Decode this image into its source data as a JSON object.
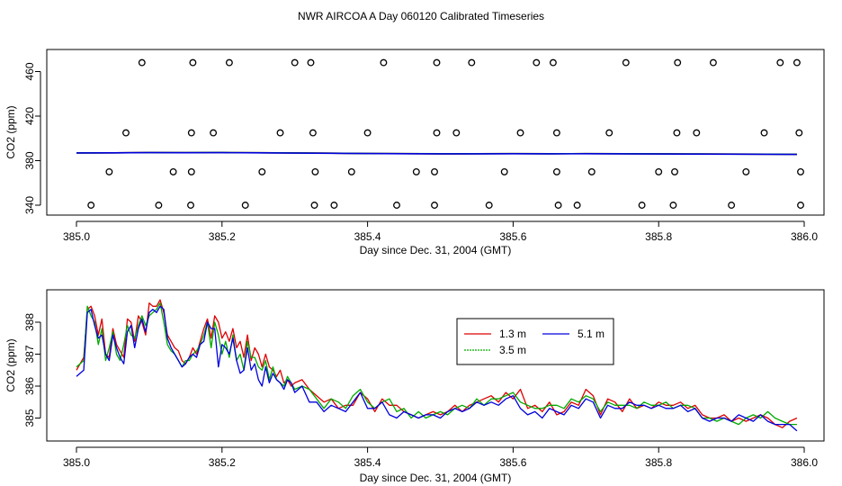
{
  "page_title": "NWR AIRCOA A  Day 060120  Calibrated Timeseries",
  "chart_data": [
    {
      "type": "scatter",
      "xlabel": "Day since Dec. 31, 2004 (GMT)",
      "ylabel": "CO2 (ppm)",
      "xlim": [
        385.0,
        386.0
      ],
      "ylim": [
        330,
        470
      ],
      "xticks": [
        385.0,
        385.2,
        385.4,
        385.6,
        385.8,
        386.0
      ],
      "xtick_labels": [
        "385.0",
        "385.2",
        "385.4",
        "385.6",
        "385.8",
        "386.0"
      ],
      "yticks": [
        340,
        380,
        420,
        460
      ],
      "ytick_labels": [
        "340",
        "380",
        "420",
        "460"
      ],
      "calibration_points": {
        "y340": [
          385.02,
          385.113,
          385.157,
          385.232,
          385.327,
          385.354,
          385.44,
          385.492,
          385.567,
          385.662,
          385.688,
          385.777,
          385.82,
          385.9,
          385.995
        ],
        "y370": [
          385.045,
          385.133,
          385.158,
          385.255,
          385.328,
          385.378,
          385.467,
          385.492,
          385.588,
          385.66,
          385.708,
          385.8,
          385.822,
          385.92,
          385.995
        ],
        "y405": [
          385.068,
          385.158,
          385.188,
          385.28,
          385.325,
          385.4,
          385.495,
          385.522,
          385.61,
          385.66,
          385.732,
          385.825,
          385.852,
          385.945,
          385.993
        ],
        "y468": [
          385.09,
          385.16,
          385.21,
          385.3,
          385.322,
          385.422,
          385.495,
          385.543,
          385.632,
          385.655,
          385.755,
          385.826,
          385.875,
          385.967,
          385.99
        ]
      },
      "series": [
        {
          "name": "1.3 m",
          "color": "#dd0000",
          "x": [
            385.0,
            385.05,
            385.1,
            385.15,
            385.2,
            385.25,
            385.3,
            385.35,
            385.4,
            385.45,
            385.5,
            385.55,
            385.6,
            385.65,
            385.7,
            385.75,
            385.8,
            385.85,
            385.9,
            385.95,
            385.99
          ],
          "values": [
            386.9,
            387.0,
            387.3,
            387.2,
            387.3,
            387.1,
            386.9,
            386.7,
            386.4,
            386.3,
            386.1,
            386.2,
            386.3,
            386.2,
            386.3,
            386.2,
            386.1,
            386.0,
            385.9,
            385.8,
            385.7
          ]
        },
        {
          "name": "3.5 m",
          "color": "#00aa00",
          "x": [
            385.0,
            385.05,
            385.1,
            385.15,
            385.2,
            385.25,
            385.3,
            385.35,
            385.4,
            385.45,
            385.5,
            385.55,
            385.6,
            385.65,
            385.7,
            385.75,
            385.8,
            385.85,
            385.9,
            385.95,
            385.99
          ],
          "values": [
            386.9,
            387.0,
            387.2,
            387.2,
            387.3,
            387.1,
            386.9,
            386.7,
            386.4,
            386.3,
            386.2,
            386.2,
            386.3,
            386.2,
            386.3,
            386.2,
            386.1,
            386.0,
            385.9,
            385.8,
            385.7
          ]
        },
        {
          "name": "5.1 m",
          "color": "#0000dd",
          "x": [
            385.0,
            385.05,
            385.1,
            385.15,
            385.2,
            385.25,
            385.3,
            385.35,
            385.4,
            385.45,
            385.5,
            385.55,
            385.6,
            385.65,
            385.7,
            385.75,
            385.8,
            385.85,
            385.9,
            385.95,
            385.99
          ],
          "values": [
            386.9,
            387.0,
            387.2,
            387.1,
            387.2,
            387.0,
            386.8,
            386.6,
            386.4,
            386.2,
            386.1,
            386.1,
            386.2,
            386.1,
            386.2,
            386.1,
            386.0,
            385.9,
            385.8,
            385.7,
            385.6
          ]
        }
      ]
    },
    {
      "type": "line",
      "xlabel": "Day since Dec. 31, 2004 (GMT)",
      "ylabel": "CO2 (ppm)",
      "xlim": [
        385.0,
        386.0
      ],
      "ylim": [
        384.5,
        388.8
      ],
      "xticks": [
        385.0,
        385.2,
        385.4,
        385.6,
        385.8,
        386.0
      ],
      "xtick_labels": [
        "385.0",
        "385.2",
        "385.4",
        "385.6",
        "385.8",
        "386.0"
      ],
      "yticks": [
        385,
        386,
        387,
        388
      ],
      "ytick_labels": [
        "385",
        "386",
        "387",
        "388"
      ],
      "legend_position": "top-right-center",
      "x": [
        385.0,
        385.01,
        385.015,
        385.02,
        385.025,
        385.03,
        385.035,
        385.04,
        385.045,
        385.05,
        385.055,
        385.06,
        385.065,
        385.07,
        385.075,
        385.08,
        385.085,
        385.09,
        385.095,
        385.1,
        385.105,
        385.11,
        385.115,
        385.12,
        385.125,
        385.13,
        385.135,
        385.14,
        385.145,
        385.15,
        385.155,
        385.16,
        385.165,
        385.17,
        385.175,
        385.18,
        385.185,
        385.19,
        385.195,
        385.2,
        385.205,
        385.21,
        385.215,
        385.22,
        385.225,
        385.23,
        385.235,
        385.24,
        385.245,
        385.25,
        385.255,
        385.26,
        385.265,
        385.27,
        385.275,
        385.28,
        385.285,
        385.29,
        385.295,
        385.3,
        385.31,
        385.32,
        385.33,
        385.34,
        385.35,
        385.36,
        385.37,
        385.38,
        385.39,
        385.4,
        385.41,
        385.42,
        385.43,
        385.44,
        385.45,
        385.46,
        385.47,
        385.48,
        385.49,
        385.5,
        385.51,
        385.52,
        385.53,
        385.54,
        385.55,
        385.56,
        385.57,
        385.58,
        385.59,
        385.6,
        385.61,
        385.62,
        385.63,
        385.64,
        385.65,
        385.66,
        385.67,
        385.68,
        385.69,
        385.7,
        385.71,
        385.72,
        385.73,
        385.74,
        385.75,
        385.76,
        385.77,
        385.78,
        385.79,
        385.8,
        385.81,
        385.82,
        385.83,
        385.84,
        385.85,
        385.86,
        385.87,
        385.88,
        385.89,
        385.9,
        385.91,
        385.92,
        385.93,
        385.94,
        385.95,
        385.96,
        385.97,
        385.98,
        385.99
      ],
      "series": [
        {
          "name": "1.3 m",
          "color": "#dd0000",
          "values": [
            386.5,
            386.9,
            388.4,
            388.5,
            388.2,
            387.6,
            388.1,
            387.0,
            386.9,
            387.8,
            387.3,
            387.1,
            386.9,
            388.1,
            388.0,
            387.4,
            388.2,
            388.0,
            387.6,
            388.6,
            388.5,
            388.5,
            388.7,
            388.3,
            387.6,
            387.4,
            387.2,
            387.1,
            386.8,
            386.7,
            386.9,
            387.2,
            387.0,
            387.4,
            387.8,
            388.1,
            387.5,
            388.2,
            388.0,
            387.5,
            387.7,
            387.4,
            387.8,
            387.2,
            387.4,
            386.9,
            387.6,
            386.8,
            387.2,
            387.0,
            386.6,
            387.0,
            386.6,
            386.5,
            386.3,
            386.5,
            386.1,
            386.2,
            386.0,
            386.1,
            386.2,
            385.9,
            385.7,
            385.5,
            385.6,
            385.3,
            385.4,
            385.4,
            385.8,
            385.6,
            385.2,
            385.6,
            385.4,
            385.4,
            385.2,
            385.1,
            385.0,
            385.1,
            385.2,
            385.1,
            385.2,
            385.4,
            385.2,
            385.4,
            385.5,
            385.6,
            385.7,
            385.5,
            385.8,
            385.6,
            385.9,
            385.3,
            385.4,
            385.2,
            385.5,
            385.1,
            385.2,
            385.5,
            385.4,
            385.9,
            385.7,
            385.1,
            385.6,
            385.5,
            385.2,
            385.6,
            385.3,
            385.4,
            385.3,
            385.5,
            385.4,
            385.4,
            385.5,
            385.3,
            385.4,
            385.1,
            385.0,
            385.0,
            385.1,
            384.9,
            385.0,
            384.9,
            385.0,
            385.1,
            385.0,
            384.8,
            384.7,
            384.9,
            385.0
          ]
        },
        {
          "name": "3.5 m",
          "color": "#00aa00",
          "values": [
            386.6,
            386.8,
            388.5,
            388.2,
            388.0,
            387.3,
            387.8,
            386.8,
            387.2,
            387.7,
            387.0,
            386.8,
            387.3,
            387.9,
            387.6,
            387.5,
            387.9,
            388.2,
            387.9,
            388.2,
            388.3,
            388.4,
            388.6,
            388.0,
            387.3,
            387.1,
            387.0,
            386.8,
            386.6,
            386.8,
            386.8,
            387.0,
            387.1,
            387.3,
            387.6,
            388.0,
            387.2,
            388.0,
            387.6,
            387.0,
            387.4,
            386.9,
            387.6,
            386.8,
            387.0,
            386.5,
            387.4,
            386.9,
            386.9,
            386.6,
            386.5,
            386.8,
            386.2,
            386.6,
            386.2,
            386.1,
            386.0,
            386.3,
            386.1,
            385.9,
            386.0,
            385.9,
            385.6,
            385.3,
            385.6,
            385.5,
            385.3,
            385.7,
            385.9,
            385.5,
            385.3,
            385.5,
            385.6,
            385.2,
            385.3,
            385.0,
            385.2,
            385.0,
            385.1,
            385.2,
            385.1,
            385.3,
            385.4,
            385.3,
            385.6,
            385.4,
            385.6,
            385.6,
            385.7,
            385.8,
            385.5,
            385.4,
            385.3,
            385.3,
            385.4,
            385.4,
            385.3,
            385.6,
            385.5,
            385.7,
            385.6,
            385.2,
            385.5,
            385.4,
            385.4,
            385.4,
            385.3,
            385.5,
            385.4,
            385.4,
            385.5,
            385.3,
            385.4,
            385.4,
            385.3,
            385.0,
            385.0,
            384.9,
            385.0,
            384.9,
            384.8,
            385.0,
            385.1,
            385.0,
            385.2,
            385.0,
            384.9,
            384.8,
            384.8
          ]
        },
        {
          "name": "5.1 m",
          "color": "#0000dd",
          "values": [
            386.3,
            386.5,
            388.3,
            388.4,
            387.9,
            387.5,
            387.6,
            387.0,
            386.8,
            387.6,
            387.2,
            386.9,
            386.7,
            387.7,
            387.9,
            387.2,
            387.8,
            388.1,
            387.7,
            388.3,
            388.4,
            388.3,
            388.5,
            388.4,
            387.5,
            387.2,
            387.0,
            386.8,
            386.6,
            386.7,
            386.9,
            387.0,
            386.9,
            387.3,
            387.4,
            388.0,
            387.8,
            387.8,
            386.6,
            387.3,
            387.2,
            387.0,
            387.5,
            386.8,
            386.4,
            386.5,
            387.2,
            386.5,
            386.7,
            386.2,
            386.0,
            386.6,
            386.1,
            386.4,
            386.2,
            386.1,
            385.9,
            386.2,
            386.1,
            385.8,
            386.0,
            385.5,
            385.5,
            385.2,
            385.4,
            385.3,
            385.2,
            385.5,
            385.8,
            385.3,
            385.3,
            385.5,
            385.1,
            385.0,
            385.2,
            385.1,
            385.0,
            385.1,
            385.1,
            385.0,
            385.2,
            385.3,
            385.2,
            385.3,
            385.5,
            385.4,
            385.5,
            385.4,
            385.6,
            385.7,
            385.3,
            385.1,
            385.2,
            385.0,
            385.3,
            385.2,
            385.1,
            385.4,
            385.3,
            385.6,
            385.5,
            385.0,
            385.4,
            385.3,
            385.3,
            385.5,
            385.4,
            385.4,
            385.3,
            385.4,
            385.3,
            385.3,
            385.4,
            385.2,
            385.3,
            385.0,
            384.9,
            385.0,
            385.0,
            384.9,
            385.1,
            385.0,
            384.9,
            385.1,
            384.9,
            384.8,
            384.8,
            384.8,
            384.6
          ]
        }
      ]
    }
  ]
}
